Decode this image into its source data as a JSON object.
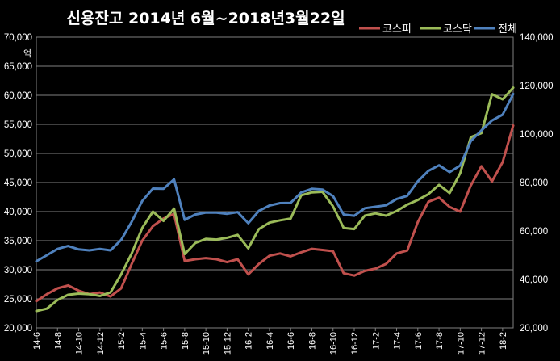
{
  "chart_data": {
    "type": "line",
    "title": "신용잔고 2014년 6월~2018년3월22일",
    "y_left_unit": "억",
    "ylim_left": [
      20000,
      70000
    ],
    "ylim_right": [
      20000,
      140000
    ],
    "y_left_ticks": [
      "20,000",
      "25,000",
      "30,000",
      "35,000",
      "40,000",
      "45,000",
      "50,000",
      "55,000",
      "60,000",
      "65,000",
      "70,000"
    ],
    "y_right_ticks": [
      "20,000",
      "40,000",
      "60,000",
      "80,000",
      "100,000",
      "120,000",
      "140,000"
    ],
    "x_ticks": [
      "14-6",
      "14-8",
      "14-10",
      "14-12",
      "15-2",
      "15-4",
      "15-6",
      "15-8",
      "15-10",
      "15-12",
      "16-2",
      "16-4",
      "16-6",
      "16-8",
      "16-10",
      "16-12",
      "17-2",
      "17-4",
      "17-6",
      "17-8",
      "17-10",
      "17-12",
      "18-2"
    ],
    "grid": true,
    "legend_position": "top-right",
    "x": [
      "14-6",
      "14-7",
      "14-8",
      "14-9",
      "14-10",
      "14-11",
      "14-12",
      "15-1",
      "15-2",
      "15-3",
      "15-4",
      "15-5",
      "15-6",
      "15-7",
      "15-8",
      "15-9",
      "15-10",
      "15-11",
      "15-12",
      "16-1",
      "16-2",
      "16-3",
      "16-4",
      "16-5",
      "16-6",
      "16-7",
      "16-8",
      "16-9",
      "16-10",
      "16-11",
      "16-12",
      "17-1",
      "17-2",
      "17-3",
      "17-4",
      "17-5",
      "17-6",
      "17-7",
      "17-8",
      "17-9",
      "17-10",
      "17-11",
      "17-12",
      "18-1",
      "18-2",
      "18-3"
    ],
    "series": [
      {
        "name": "코스피",
        "axis": "left",
        "color": "#c0504d",
        "values": [
          24600,
          25800,
          26800,
          27300,
          26400,
          25800,
          26100,
          25400,
          26800,
          31000,
          35000,
          37500,
          38800,
          39600,
          31500,
          31800,
          32000,
          31800,
          31300,
          31800,
          29200,
          31000,
          32400,
          32800,
          32300,
          33000,
          33600,
          33400,
          33200,
          29400,
          29000,
          29800,
          30200,
          31000,
          32800,
          33300,
          38200,
          41700,
          42400,
          40800,
          40000,
          44500,
          47800,
          45200,
          48500,
          54800
        ]
      },
      {
        "name": "코스닥",
        "axis": "left",
        "color": "#9bbb59",
        "values": [
          22900,
          23300,
          24800,
          25700,
          25900,
          25800,
          25500,
          26100,
          29200,
          32800,
          37200,
          40000,
          38400,
          40500,
          32700,
          34600,
          35300,
          35200,
          35500,
          36000,
          33700,
          37000,
          38100,
          38500,
          38800,
          42800,
          43300,
          43400,
          40900,
          37200,
          37000,
          39300,
          39700,
          39300,
          40100,
          41200,
          42000,
          43000,
          44600,
          43200,
          46600,
          52800,
          53500,
          60200,
          59300,
          61300
        ]
      },
      {
        "name": "전체",
        "axis": "right",
        "color": "#4f81bd",
        "values": [
          47500,
          50000,
          52600,
          53800,
          52400,
          52000,
          52600,
          52000,
          56300,
          63800,
          72400,
          77500,
          77400,
          81300,
          64600,
          66800,
          67600,
          67600,
          67100,
          67800,
          63200,
          68300,
          70500,
          71500,
          71600,
          75900,
          77400,
          77100,
          74400,
          66800,
          66300,
          69400,
          70000,
          70600,
          73200,
          74500,
          80500,
          84800,
          87100,
          84300,
          87000,
          97100,
          101500,
          105600,
          108000,
          116500
        ]
      }
    ]
  }
}
